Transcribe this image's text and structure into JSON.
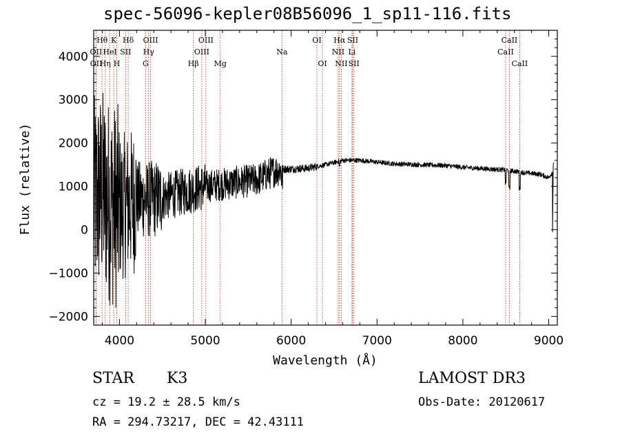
{
  "chart_data": {
    "type": "line",
    "title": "spec-56096-kepler08B56096_1_sp11-116.fits",
    "xlabel": "Wavelength (Å)",
    "ylabel": "Flux (relative)",
    "xlim": [
      3700,
      9100
    ],
    "ylim": [
      -2200,
      4600
    ],
    "x_ticks": [
      4000,
      5000,
      6000,
      7000,
      8000,
      9000
    ],
    "x_tick_labels": [
      "4000",
      "5000",
      "6000",
      "7000",
      "8000",
      "9000"
    ],
    "y_ticks": [
      -2000,
      -1000,
      0,
      1000,
      2000,
      3000,
      4000
    ],
    "y_tick_labels": [
      "−2000",
      "−1000",
      "0",
      "1000",
      "2000",
      "3000",
      "4000"
    ],
    "spectrum_anchors": [
      [
        3700,
        700
      ],
      [
        3800,
        900
      ],
      [
        3900,
        600
      ],
      [
        4000,
        500
      ],
      [
        4200,
        700
      ],
      [
        4400,
        700
      ],
      [
        4600,
        800
      ],
      [
        4800,
        900
      ],
      [
        5000,
        1000
      ],
      [
        5200,
        1050
      ],
      [
        5400,
        1100
      ],
      [
        5600,
        1150
      ],
      [
        5800,
        1350
      ],
      [
        5900,
        1400
      ],
      [
        6000,
        1400
      ],
      [
        6200,
        1420
      ],
      [
        6400,
        1500
      ],
      [
        6600,
        1600
      ],
      [
        6800,
        1600
      ],
      [
        7000,
        1560
      ],
      [
        7200,
        1520
      ],
      [
        7500,
        1500
      ],
      [
        7800,
        1480
      ],
      [
        8000,
        1440
      ],
      [
        8300,
        1400
      ],
      [
        8500,
        1380
      ],
      [
        8700,
        1320
      ],
      [
        8900,
        1280
      ],
      [
        9000,
        1200
      ],
      [
        9050,
        1350
      ]
    ],
    "spectral_lines": [
      {
        "label": "Hθ",
        "wavelength": 3798,
        "row": 0
      },
      {
        "label": "OII",
        "wavelength": 3727,
        "row": 1
      },
      {
        "label": "OII",
        "wavelength": 3729,
        "row": 2
      },
      {
        "label": "HeI",
        "wavelength": 3889,
        "row": 1
      },
      {
        "label": "Hη",
        "wavelength": 3835,
        "row": 2
      },
      {
        "label": "K",
        "wavelength": 3934,
        "row": 0
      },
      {
        "label": "H",
        "wavelength": 3969,
        "row": 2
      },
      {
        "label": "SII",
        "wavelength": 4072,
        "row": 1
      },
      {
        "label": "Hδ",
        "wavelength": 4102,
        "row": 0
      },
      {
        "label": "OIII",
        "wavelength": 4363,
        "row": 0
      },
      {
        "label": "Hγ",
        "wavelength": 4340,
        "row": 1
      },
      {
        "label": "G",
        "wavelength": 4305,
        "row": 2
      },
      {
        "label": "Hβ",
        "wavelength": 4861,
        "row": 2
      },
      {
        "label": "OIII",
        "wavelength": 4959,
        "row": 1
      },
      {
        "label": "OIII",
        "wavelength": 5007,
        "row": 0
      },
      {
        "label": "Mg",
        "wavelength": 5175,
        "row": 2
      },
      {
        "label": "Na",
        "wavelength": 5893,
        "row": 1
      },
      {
        "label": "OI",
        "wavelength": 6300,
        "row": 0
      },
      {
        "label": "OI",
        "wavelength": 6364,
        "row": 2
      },
      {
        "label": "Hα",
        "wavelength": 6563,
        "row": 0
      },
      {
        "label": "NII",
        "wavelength": 6548,
        "row": 1
      },
      {
        "label": "NII",
        "wavelength": 6584,
        "row": 2
      },
      {
        "label": "SII",
        "wavelength": 6717,
        "row": 0
      },
      {
        "label": "Li",
        "wavelength": 6708,
        "row": 1
      },
      {
        "label": "SII",
        "wavelength": 6731,
        "row": 2
      },
      {
        "label": "CaII",
        "wavelength": 8542,
        "row": 0
      },
      {
        "label": "CaII",
        "wavelength": 8498,
        "row": 1
      },
      {
        "label": "CaII",
        "wavelength": 8662,
        "row": 2
      }
    ]
  },
  "info": {
    "object_class": "STAR",
    "subclass": "K3",
    "survey": "LAMOST DR3",
    "cz": "cz = 19.2 ± 28.5 km/s",
    "obs_date": "Obs-Date: 20120617",
    "coords": "RA = 294.73217, DEC =  42.43111"
  },
  "colors": {
    "spectrum": "#000000",
    "line_marker": "#cc2200",
    "axes": "#000000"
  }
}
